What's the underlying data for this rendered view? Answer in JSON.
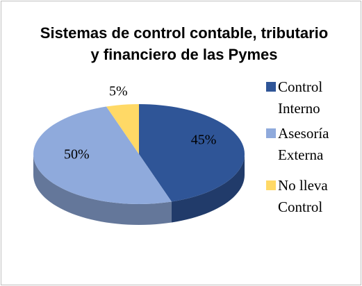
{
  "chart_data": {
    "type": "pie",
    "title": "Sistemas de control contable, tributario y financiero de las Pymes",
    "categories": [
      "Control Interno",
      "Asesoría Externa",
      "No lleva Control"
    ],
    "values": [
      45,
      50,
      5
    ],
    "value_labels": [
      "45%",
      "50%",
      "5%"
    ],
    "colors": [
      "#2f5597",
      "#8faadc",
      "#ffd966"
    ],
    "legend": "right"
  }
}
